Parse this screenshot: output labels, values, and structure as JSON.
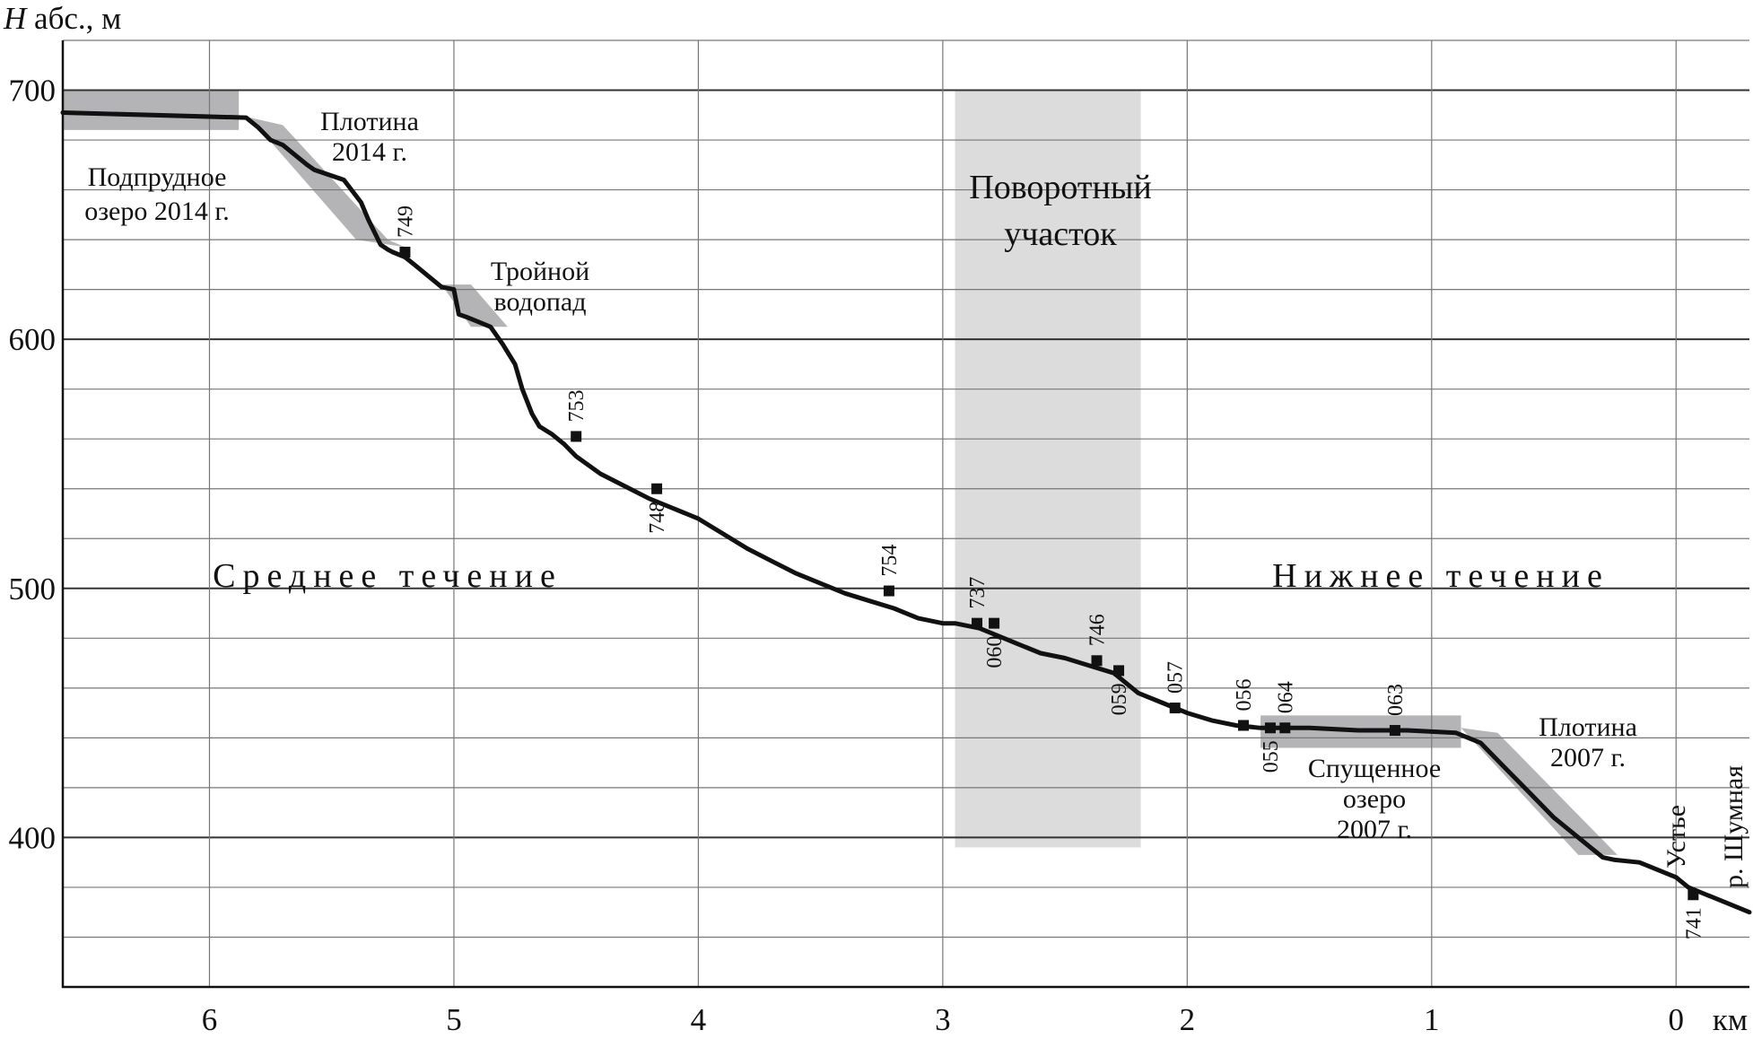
{
  "chart_data": {
    "type": "line",
    "title": "",
    "ylabel_italic": "H",
    "ylabel": "абс., м",
    "xlabel": "км",
    "xlim": [
      6.6,
      -0.3
    ],
    "ylim": [
      340,
      700
    ],
    "x_ticks": [
      6,
      5,
      4,
      3,
      2,
      1,
      0
    ],
    "y_ticks": [
      400,
      500,
      600,
      700
    ],
    "grid_y_minor_step": 20,
    "grid_x_step": 1,
    "grid": true,
    "colors": {
      "line": "#111111",
      "shade_dark": "#b4b4b6",
      "shade_light": "#dcdcdd"
    },
    "profile": {
      "x": [
        6.6,
        5.85,
        5.8,
        5.75,
        5.7,
        5.65,
        5.6,
        5.57,
        5.45,
        5.38,
        5.35,
        5.32,
        5.3,
        5.27,
        5.25,
        5.2,
        5.15,
        5.1,
        5.05,
        5.0,
        4.98,
        4.95,
        4.9,
        4.85,
        4.8,
        4.75,
        4.72,
        4.68,
        4.65,
        4.6,
        4.55,
        4.5,
        4.4,
        4.3,
        4.2,
        4.1,
        4.0,
        3.9,
        3.8,
        3.7,
        3.6,
        3.5,
        3.4,
        3.3,
        3.2,
        3.1,
        3.0,
        2.95,
        2.85,
        2.75,
        2.7,
        2.6,
        2.5,
        2.4,
        2.3,
        2.25,
        2.2,
        2.1,
        2.0,
        1.9,
        1.8,
        1.7,
        1.6,
        1.5,
        1.3,
        1.1,
        0.9,
        0.8,
        0.7,
        0.6,
        0.5,
        0.4,
        0.3,
        0.25,
        0.15,
        0.1,
        0.0,
        -0.05,
        -0.1,
        -0.2,
        -0.3
      ],
      "y": [
        691,
        689,
        685,
        680,
        678,
        674,
        670,
        668,
        664,
        655,
        648,
        642,
        638,
        636,
        635,
        633,
        629,
        625,
        621,
        620,
        610,
        609,
        607,
        605,
        598,
        590,
        580,
        570,
        565,
        562,
        558,
        553,
        546,
        541,
        536,
        532,
        528,
        522,
        516,
        511,
        506,
        502,
        498,
        495,
        492,
        488,
        486,
        486,
        484,
        480,
        478,
        474,
        472,
        469,
        466,
        462,
        458,
        454,
        450,
        447,
        445,
        444,
        444,
        444,
        443,
        443,
        442,
        438,
        428,
        418,
        408,
        400,
        392,
        391,
        390,
        388,
        384,
        380,
        378,
        374,
        370
      ]
    },
    "points": [
      {
        "label": "749",
        "x": 5.2,
        "y": 635,
        "label_pos": "above"
      },
      {
        "label": "753",
        "x": 4.5,
        "y": 561,
        "label_pos": "above"
      },
      {
        "label": "748",
        "x": 4.17,
        "y": 540,
        "label_pos": "below"
      },
      {
        "label": "754",
        "x": 3.22,
        "y": 499,
        "label_pos": "above"
      },
      {
        "label": "737",
        "x": 2.86,
        "y": 486,
        "label_pos": "above"
      },
      {
        "label": "060",
        "x": 2.79,
        "y": 486,
        "label_pos": "below"
      },
      {
        "label": "746",
        "x": 2.37,
        "y": 471,
        "label_pos": "above"
      },
      {
        "label": "059",
        "x": 2.28,
        "y": 467,
        "label_pos": "below"
      },
      {
        "label": "057",
        "x": 2.05,
        "y": 452,
        "label_pos": "above"
      },
      {
        "label": "056",
        "x": 1.77,
        "y": 445,
        "label_pos": "above"
      },
      {
        "label": "055",
        "x": 1.66,
        "y": 444,
        "label_pos": "below"
      },
      {
        "label": "064",
        "x": 1.6,
        "y": 444,
        "label_pos": "above"
      },
      {
        "label": "063",
        "x": 1.15,
        "y": 443,
        "label_pos": "above"
      },
      {
        "label": "741",
        "x": -0.07,
        "y": 377,
        "label_pos": "below"
      }
    ],
    "shaded_regions": [
      {
        "tone": "dark",
        "polygon": [
          [
            6.6,
            700
          ],
          [
            5.88,
            700
          ],
          [
            5.88,
            684
          ],
          [
            6.6,
            684
          ]
        ]
      },
      {
        "tone": "dark",
        "polygon": [
          [
            5.88,
            690
          ],
          [
            5.7,
            686
          ],
          [
            5.27,
            640
          ],
          [
            5.2,
            637
          ],
          [
            5.4,
            640
          ],
          [
            5.8,
            685
          ]
        ]
      },
      {
        "tone": "dark",
        "polygon": [
          [
            5.05,
            622
          ],
          [
            4.93,
            622
          ],
          [
            4.78,
            605
          ],
          [
            4.93,
            605
          ]
        ]
      },
      {
        "tone": "light",
        "polygon": [
          [
            2.95,
            700
          ],
          [
            2.19,
            700
          ],
          [
            2.19,
            396
          ],
          [
            2.95,
            396
          ]
        ]
      },
      {
        "tone": "dark",
        "polygon": [
          [
            1.7,
            449
          ],
          [
            0.88,
            449
          ],
          [
            0.88,
            436
          ],
          [
            1.7,
            436
          ]
        ]
      },
      {
        "tone": "dark",
        "polygon": [
          [
            0.88,
            444
          ],
          [
            0.73,
            442
          ],
          [
            0.24,
            393
          ],
          [
            0.4,
            393
          ]
        ]
      }
    ],
    "annotations": [
      {
        "lines": [
          "Подпрудное",
          "озеро 2014 г."
        ],
        "size": "normal"
      },
      {
        "lines": [
          "Плотина",
          "2014 г."
        ],
        "size": "normal"
      },
      {
        "lines": [
          "Тройной",
          "водопад"
        ],
        "size": "normal"
      },
      {
        "lines": [
          "Поворотный",
          "участок"
        ],
        "size": "big"
      },
      {
        "lines": [
          "Среднее течение"
        ],
        "size": "spaced"
      },
      {
        "lines": [
          "Нижнее течение"
        ],
        "size": "spaced"
      },
      {
        "lines": [
          "Спущенное",
          "озеро",
          "2007 г."
        ],
        "size": "normal"
      },
      {
        "lines": [
          "Плотина",
          "2007 г."
        ],
        "size": "normal"
      },
      {
        "lines": [
          "Устье"
        ],
        "size": "vertical"
      },
      {
        "lines": [
          "р. Шумная"
        ],
        "size": "vertical"
      }
    ]
  }
}
